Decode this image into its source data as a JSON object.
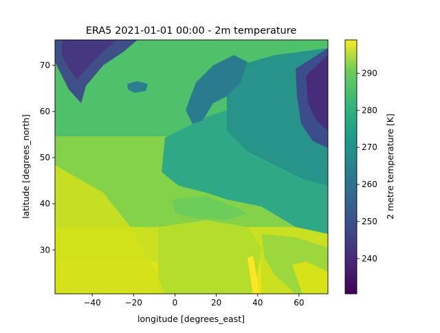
{
  "chart_data": {
    "type": "heatmap",
    "title": "ERA5 2021-01-01 00:00 - 2m temperature",
    "xlabel": "longitude [degrees_east]",
    "ylabel": "latitude [degrees_north]",
    "xlim": [
      -58,
      74
    ],
    "ylim": [
      20.5,
      75.5
    ],
    "xticks": [
      -40,
      -20,
      0,
      20,
      40,
      60
    ],
    "yticks": [
      30,
      40,
      50,
      60,
      70
    ],
    "grid": false,
    "colormap": "viridis",
    "colorbar": {
      "label": "2 metre temperature [K]",
      "range": [
        230.5,
        299
      ],
      "ticks": [
        240,
        250,
        260,
        270,
        280,
        290
      ]
    }
  }
}
